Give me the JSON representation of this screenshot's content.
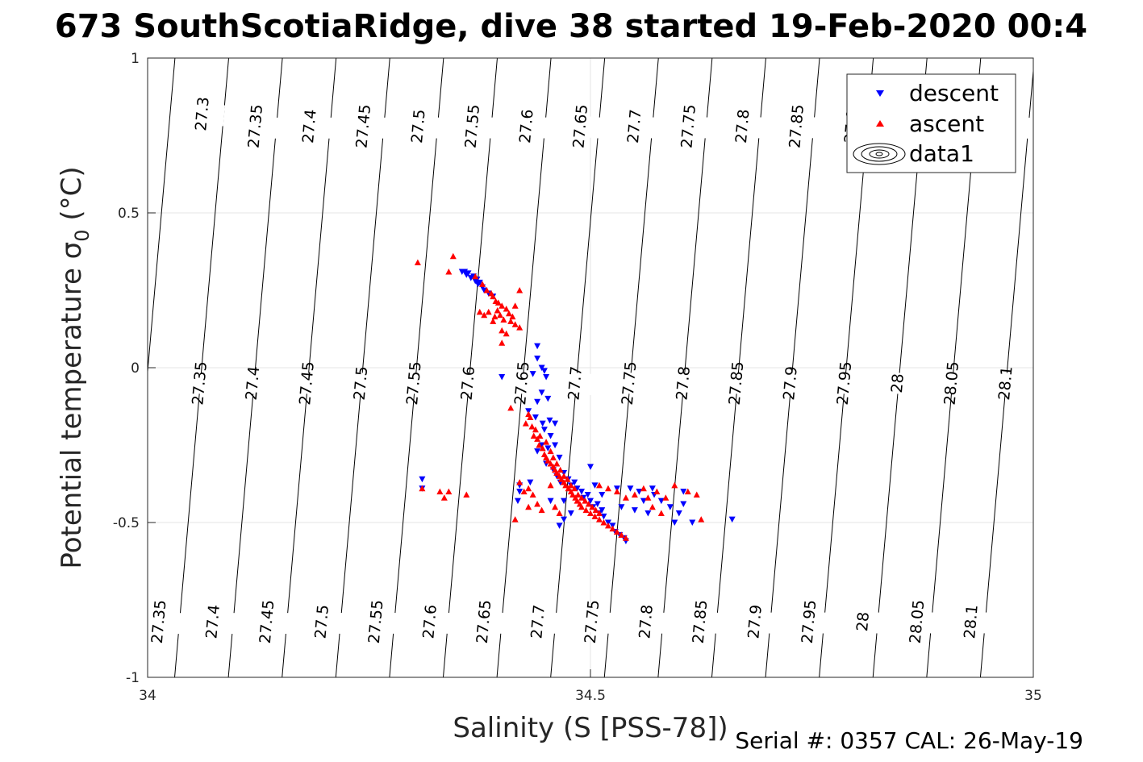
{
  "chart_data": {
    "type": "scatter",
    "title": "673 SouthScotiaRidge, dive 38 started 19-Feb-2020 00:4",
    "xlabel": "Salinity (S [PSS-78])",
    "ylabel": "Potential temperature σ",
    "ylabel_sub": "0",
    "ylabel_unit": " (°C)",
    "xlim": [
      34,
      35
    ],
    "ylim": [
      -1,
      1
    ],
    "xticks": [
      34,
      34.5,
      35
    ],
    "xtick_labels": [
      "34",
      "34.5",
      "35"
    ],
    "yticks": [
      -1,
      -0.5,
      0,
      0.5,
      1
    ],
    "ytick_labels": [
      "-1",
      "-0.5",
      "0",
      "0.5",
      "1"
    ],
    "grid": true,
    "legend_position": "top-right",
    "legend": [
      "descent",
      "ascent",
      "data1"
    ],
    "footer": "Serial #: 0357  CAL: 26-May-19",
    "isopycnals": {
      "levels": [
        27.3,
        27.35,
        27.4,
        27.45,
        27.5,
        27.55,
        27.6,
        27.65,
        27.7,
        27.75,
        27.8,
        27.85,
        27.9,
        27.95,
        28,
        28.05,
        28.1
      ],
      "labels": [
        "27.3",
        "27.35",
        "27.4",
        "27.45",
        "27.5",
        "27.55",
        "27.6",
        "27.65",
        "27.7",
        "27.75",
        "27.8",
        "27.85",
        "27.9",
        "27.95",
        "28",
        "28.05",
        "28.1"
      ],
      "upper_row": [
        {
          "s": 34.061,
          "t": 0.82,
          "level": "27.3"
        },
        {
          "s": 34.121,
          "t": 0.78,
          "level": "27.35"
        },
        {
          "s": 34.182,
          "t": 0.78,
          "level": "27.4"
        },
        {
          "s": 34.243,
          "t": 0.78,
          "level": "27.45"
        },
        {
          "s": 34.305,
          "t": 0.78,
          "level": "27.5"
        },
        {
          "s": 34.366,
          "t": 0.78,
          "level": "27.55"
        },
        {
          "s": 34.427,
          "t": 0.78,
          "level": "27.6"
        },
        {
          "s": 34.488,
          "t": 0.78,
          "level": "27.65"
        },
        {
          "s": 34.549,
          "t": 0.78,
          "level": "27.7"
        },
        {
          "s": 34.61,
          "t": 0.78,
          "level": "27.75"
        },
        {
          "s": 34.671,
          "t": 0.78,
          "level": "27.8"
        },
        {
          "s": 34.732,
          "t": 0.78,
          "level": "27.85"
        },
        {
          "s": 34.794,
          "t": 0.78,
          "level": "27.9"
        },
        {
          "s": 34.97,
          "t": 0.78,
          "level": "28.05"
        }
      ],
      "middle_row": [
        {
          "s": 34.058,
          "t": -0.05,
          "level": "27.35"
        },
        {
          "s": 34.118,
          "t": -0.05,
          "level": "27.4"
        },
        {
          "s": 34.179,
          "t": -0.05,
          "level": "27.45"
        },
        {
          "s": 34.24,
          "t": -0.05,
          "level": "27.5"
        },
        {
          "s": 34.3,
          "t": -0.05,
          "level": "27.55"
        },
        {
          "s": 34.361,
          "t": -0.05,
          "level": "27.6"
        },
        {
          "s": 34.422,
          "t": -0.05,
          "level": "27.65"
        },
        {
          "s": 34.482,
          "t": -0.05,
          "level": "27.7"
        },
        {
          "s": 34.543,
          "t": -0.05,
          "level": "27.75"
        },
        {
          "s": 34.604,
          "t": -0.05,
          "level": "27.8"
        },
        {
          "s": 34.664,
          "t": -0.05,
          "level": "27.85"
        },
        {
          "s": 34.725,
          "t": -0.05,
          "level": "27.9"
        },
        {
          "s": 34.786,
          "t": -0.05,
          "level": "27.95"
        },
        {
          "s": 34.846,
          "t": -0.05,
          "level": "28"
        },
        {
          "s": 34.907,
          "t": -0.05,
          "level": "28.05"
        },
        {
          "s": 34.968,
          "t": -0.05,
          "level": "28.1"
        }
      ],
      "lower_row": [
        {
          "s": 34.012,
          "t": -0.82,
          "level": "27.35"
        },
        {
          "s": 34.073,
          "t": -0.82,
          "level": "27.4"
        },
        {
          "s": 34.134,
          "t": -0.82,
          "level": "27.45"
        },
        {
          "s": 34.196,
          "t": -0.82,
          "level": "27.5"
        },
        {
          "s": 34.257,
          "t": -0.82,
          "level": "27.55"
        },
        {
          "s": 34.318,
          "t": -0.82,
          "level": "27.6"
        },
        {
          "s": 34.379,
          "t": -0.82,
          "level": "27.65"
        },
        {
          "s": 34.44,
          "t": -0.82,
          "level": "27.7"
        },
        {
          "s": 34.501,
          "t": -0.82,
          "level": "27.75"
        },
        {
          "s": 34.562,
          "t": -0.82,
          "level": "27.8"
        },
        {
          "s": 34.623,
          "t": -0.82,
          "level": "27.85"
        },
        {
          "s": 34.685,
          "t": -0.82,
          "level": "27.9"
        },
        {
          "s": 34.746,
          "t": -0.82,
          "level": "27.95"
        },
        {
          "s": 34.807,
          "t": -0.82,
          "level": "28"
        },
        {
          "s": 34.868,
          "t": -0.82,
          "level": "28.05"
        },
        {
          "s": 34.929,
          "t": -0.82,
          "level": "28.1"
        }
      ]
    },
    "series": [
      {
        "name": "descent",
        "marker": "triangle-down",
        "color": "#0000ff",
        "points": [
          [
            34.355,
            0.31
          ],
          [
            34.36,
            0.3
          ],
          [
            34.365,
            0.29
          ],
          [
            34.362,
            0.305
          ],
          [
            34.37,
            0.28
          ],
          [
            34.373,
            0.27
          ],
          [
            34.378,
            0.26
          ],
          [
            34.368,
            0.295
          ],
          [
            34.375,
            0.275
          ],
          [
            34.38,
            0.25
          ],
          [
            34.372,
            0.285
          ],
          [
            34.385,
            0.24
          ],
          [
            34.358,
            0.31
          ],
          [
            34.39,
            0.23
          ],
          [
            34.4,
            -0.03
          ],
          [
            34.44,
            0.07
          ],
          [
            34.44,
            0.03
          ],
          [
            34.445,
            0.0
          ],
          [
            34.435,
            -0.02
          ],
          [
            34.448,
            -0.01
          ],
          [
            34.45,
            -0.03
          ],
          [
            34.445,
            -0.08
          ],
          [
            34.44,
            -0.11
          ],
          [
            34.452,
            -0.1
          ],
          [
            34.43,
            -0.14
          ],
          [
            34.438,
            -0.16
          ],
          [
            34.446,
            -0.18
          ],
          [
            34.454,
            -0.17
          ],
          [
            34.46,
            -0.18
          ],
          [
            34.448,
            -0.2
          ],
          [
            34.455,
            -0.22
          ],
          [
            34.445,
            -0.25
          ],
          [
            34.452,
            -0.26
          ],
          [
            34.46,
            -0.25
          ],
          [
            34.44,
            -0.27
          ],
          [
            34.465,
            -0.29
          ],
          [
            34.45,
            -0.31
          ],
          [
            34.458,
            -0.33
          ],
          [
            34.462,
            -0.35
          ],
          [
            34.47,
            -0.34
          ],
          [
            34.466,
            -0.37
          ],
          [
            34.475,
            -0.36
          ],
          [
            34.478,
            -0.38
          ],
          [
            34.482,
            -0.37
          ],
          [
            34.485,
            -0.39
          ],
          [
            34.49,
            -0.4
          ],
          [
            34.492,
            -0.42
          ],
          [
            34.497,
            -0.41
          ],
          [
            34.5,
            -0.43
          ],
          [
            34.503,
            -0.45
          ],
          [
            34.508,
            -0.44
          ],
          [
            34.51,
            -0.47
          ],
          [
            34.515,
            -0.48
          ],
          [
            34.52,
            -0.5
          ],
          [
            34.525,
            -0.51
          ],
          [
            34.528,
            -0.53
          ],
          [
            34.533,
            -0.54
          ],
          [
            34.538,
            -0.55
          ],
          [
            34.54,
            -0.56
          ],
          [
            34.513,
            -0.46
          ],
          [
            34.31,
            -0.36
          ],
          [
            34.31,
            -0.39
          ],
          [
            34.42,
            -0.38
          ],
          [
            34.42,
            -0.4
          ],
          [
            34.418,
            -0.43
          ],
          [
            34.432,
            -0.37
          ],
          [
            34.455,
            -0.43
          ],
          [
            34.47,
            -0.43
          ],
          [
            34.478,
            -0.47
          ],
          [
            34.465,
            -0.51
          ],
          [
            34.47,
            -0.49
          ],
          [
            34.5,
            -0.32
          ],
          [
            34.505,
            -0.38
          ],
          [
            34.513,
            -0.41
          ],
          [
            34.53,
            -0.39
          ],
          [
            34.545,
            -0.39
          ],
          [
            34.555,
            -0.4
          ],
          [
            34.56,
            -0.43
          ],
          [
            34.57,
            -0.39
          ],
          [
            34.58,
            -0.43
          ],
          [
            34.59,
            -0.45
          ],
          [
            34.565,
            -0.47
          ],
          [
            34.55,
            -0.46
          ],
          [
            34.595,
            -0.5
          ],
          [
            34.605,
            -0.4
          ],
          [
            34.605,
            -0.44
          ],
          [
            34.615,
            -0.5
          ],
          [
            34.6,
            -0.47
          ],
          [
            34.66,
            -0.49
          ],
          [
            34.572,
            -0.41
          ],
          [
            34.535,
            -0.45
          ]
        ]
      },
      {
        "name": "ascent",
        "marker": "triangle-up",
        "color": "#ff0000",
        "points": [
          [
            34.305,
            0.34
          ],
          [
            34.34,
            0.31
          ],
          [
            34.345,
            0.36
          ],
          [
            34.37,
            0.295
          ],
          [
            34.378,
            0.27
          ],
          [
            34.383,
            0.25
          ],
          [
            34.39,
            0.23
          ],
          [
            34.393,
            0.215
          ],
          [
            34.388,
            0.24
          ],
          [
            34.396,
            0.21
          ],
          [
            34.4,
            0.2
          ],
          [
            34.405,
            0.19
          ],
          [
            34.395,
            0.185
          ],
          [
            34.408,
            0.175
          ],
          [
            34.412,
            0.165
          ],
          [
            34.402,
            0.155
          ],
          [
            34.41,
            0.15
          ],
          [
            34.415,
            0.14
          ],
          [
            34.42,
            0.13
          ],
          [
            34.38,
            0.17
          ],
          [
            34.385,
            0.18
          ],
          [
            34.392,
            0.165
          ],
          [
            34.398,
            0.17
          ],
          [
            34.4,
            0.12
          ],
          [
            34.405,
            0.11
          ],
          [
            34.4,
            0.08
          ],
          [
            34.415,
            0.2
          ],
          [
            34.42,
            0.25
          ],
          [
            34.375,
            0.18
          ],
          [
            34.39,
            0.15
          ],
          [
            34.41,
            -0.13
          ],
          [
            34.43,
            -0.15
          ],
          [
            34.427,
            -0.18
          ],
          [
            34.432,
            -0.16
          ],
          [
            34.434,
            -0.19
          ],
          [
            34.438,
            -0.2
          ],
          [
            34.436,
            -0.22
          ],
          [
            34.44,
            -0.23
          ],
          [
            34.442,
            -0.25
          ],
          [
            34.446,
            -0.26
          ],
          [
            34.448,
            -0.28
          ],
          [
            34.45,
            -0.29
          ],
          [
            34.452,
            -0.3
          ],
          [
            34.455,
            -0.31
          ],
          [
            34.458,
            -0.32
          ],
          [
            34.46,
            -0.33
          ],
          [
            34.462,
            -0.34
          ],
          [
            34.465,
            -0.35
          ],
          [
            34.467,
            -0.36
          ],
          [
            34.47,
            -0.37
          ],
          [
            34.472,
            -0.38
          ],
          [
            34.475,
            -0.39
          ],
          [
            34.478,
            -0.4
          ],
          [
            34.48,
            -0.41
          ],
          [
            34.483,
            -0.42
          ],
          [
            34.485,
            -0.43
          ],
          [
            34.488,
            -0.44
          ],
          [
            34.49,
            -0.45
          ],
          [
            34.495,
            -0.46
          ],
          [
            34.5,
            -0.47
          ],
          [
            34.505,
            -0.48
          ],
          [
            34.51,
            -0.49
          ],
          [
            34.515,
            -0.5
          ],
          [
            34.52,
            -0.51
          ],
          [
            34.525,
            -0.52
          ],
          [
            34.53,
            -0.53
          ],
          [
            34.535,
            -0.54
          ],
          [
            34.54,
            -0.55
          ],
          [
            34.443,
            -0.22
          ],
          [
            34.45,
            -0.24
          ],
          [
            34.455,
            -0.27
          ],
          [
            34.458,
            -0.29
          ],
          [
            34.462,
            -0.31
          ],
          [
            34.466,
            -0.33
          ],
          [
            34.47,
            -0.35
          ],
          [
            34.474,
            -0.36
          ],
          [
            34.478,
            -0.38
          ],
          [
            34.482,
            -0.39
          ],
          [
            34.486,
            -0.41
          ],
          [
            34.49,
            -0.42
          ],
          [
            34.494,
            -0.43
          ],
          [
            34.498,
            -0.44
          ],
          [
            34.502,
            -0.45
          ],
          [
            34.506,
            -0.46
          ],
          [
            34.51,
            -0.47
          ],
          [
            34.31,
            -0.39
          ],
          [
            34.33,
            -0.4
          ],
          [
            34.335,
            -0.42
          ],
          [
            34.34,
            -0.4
          ],
          [
            34.36,
            -0.41
          ],
          [
            34.42,
            -0.37
          ],
          [
            34.425,
            -0.4
          ],
          [
            34.43,
            -0.39
          ],
          [
            34.435,
            -0.41
          ],
          [
            34.44,
            -0.44
          ],
          [
            34.445,
            -0.46
          ],
          [
            34.415,
            -0.49
          ],
          [
            34.43,
            -0.45
          ],
          [
            34.455,
            -0.38
          ],
          [
            34.46,
            -0.45
          ],
          [
            34.465,
            -0.47
          ],
          [
            34.51,
            -0.38
          ],
          [
            34.52,
            -0.39
          ],
          [
            34.53,
            -0.4
          ],
          [
            34.54,
            -0.42
          ],
          [
            34.55,
            -0.41
          ],
          [
            34.56,
            -0.39
          ],
          [
            34.565,
            -0.42
          ],
          [
            34.575,
            -0.4
          ],
          [
            34.585,
            -0.42
          ],
          [
            34.595,
            -0.38
          ],
          [
            34.61,
            -0.4
          ],
          [
            34.62,
            -0.41
          ],
          [
            34.625,
            -0.49
          ],
          [
            34.58,
            -0.47
          ],
          [
            34.57,
            -0.45
          ]
        ]
      }
    ]
  }
}
